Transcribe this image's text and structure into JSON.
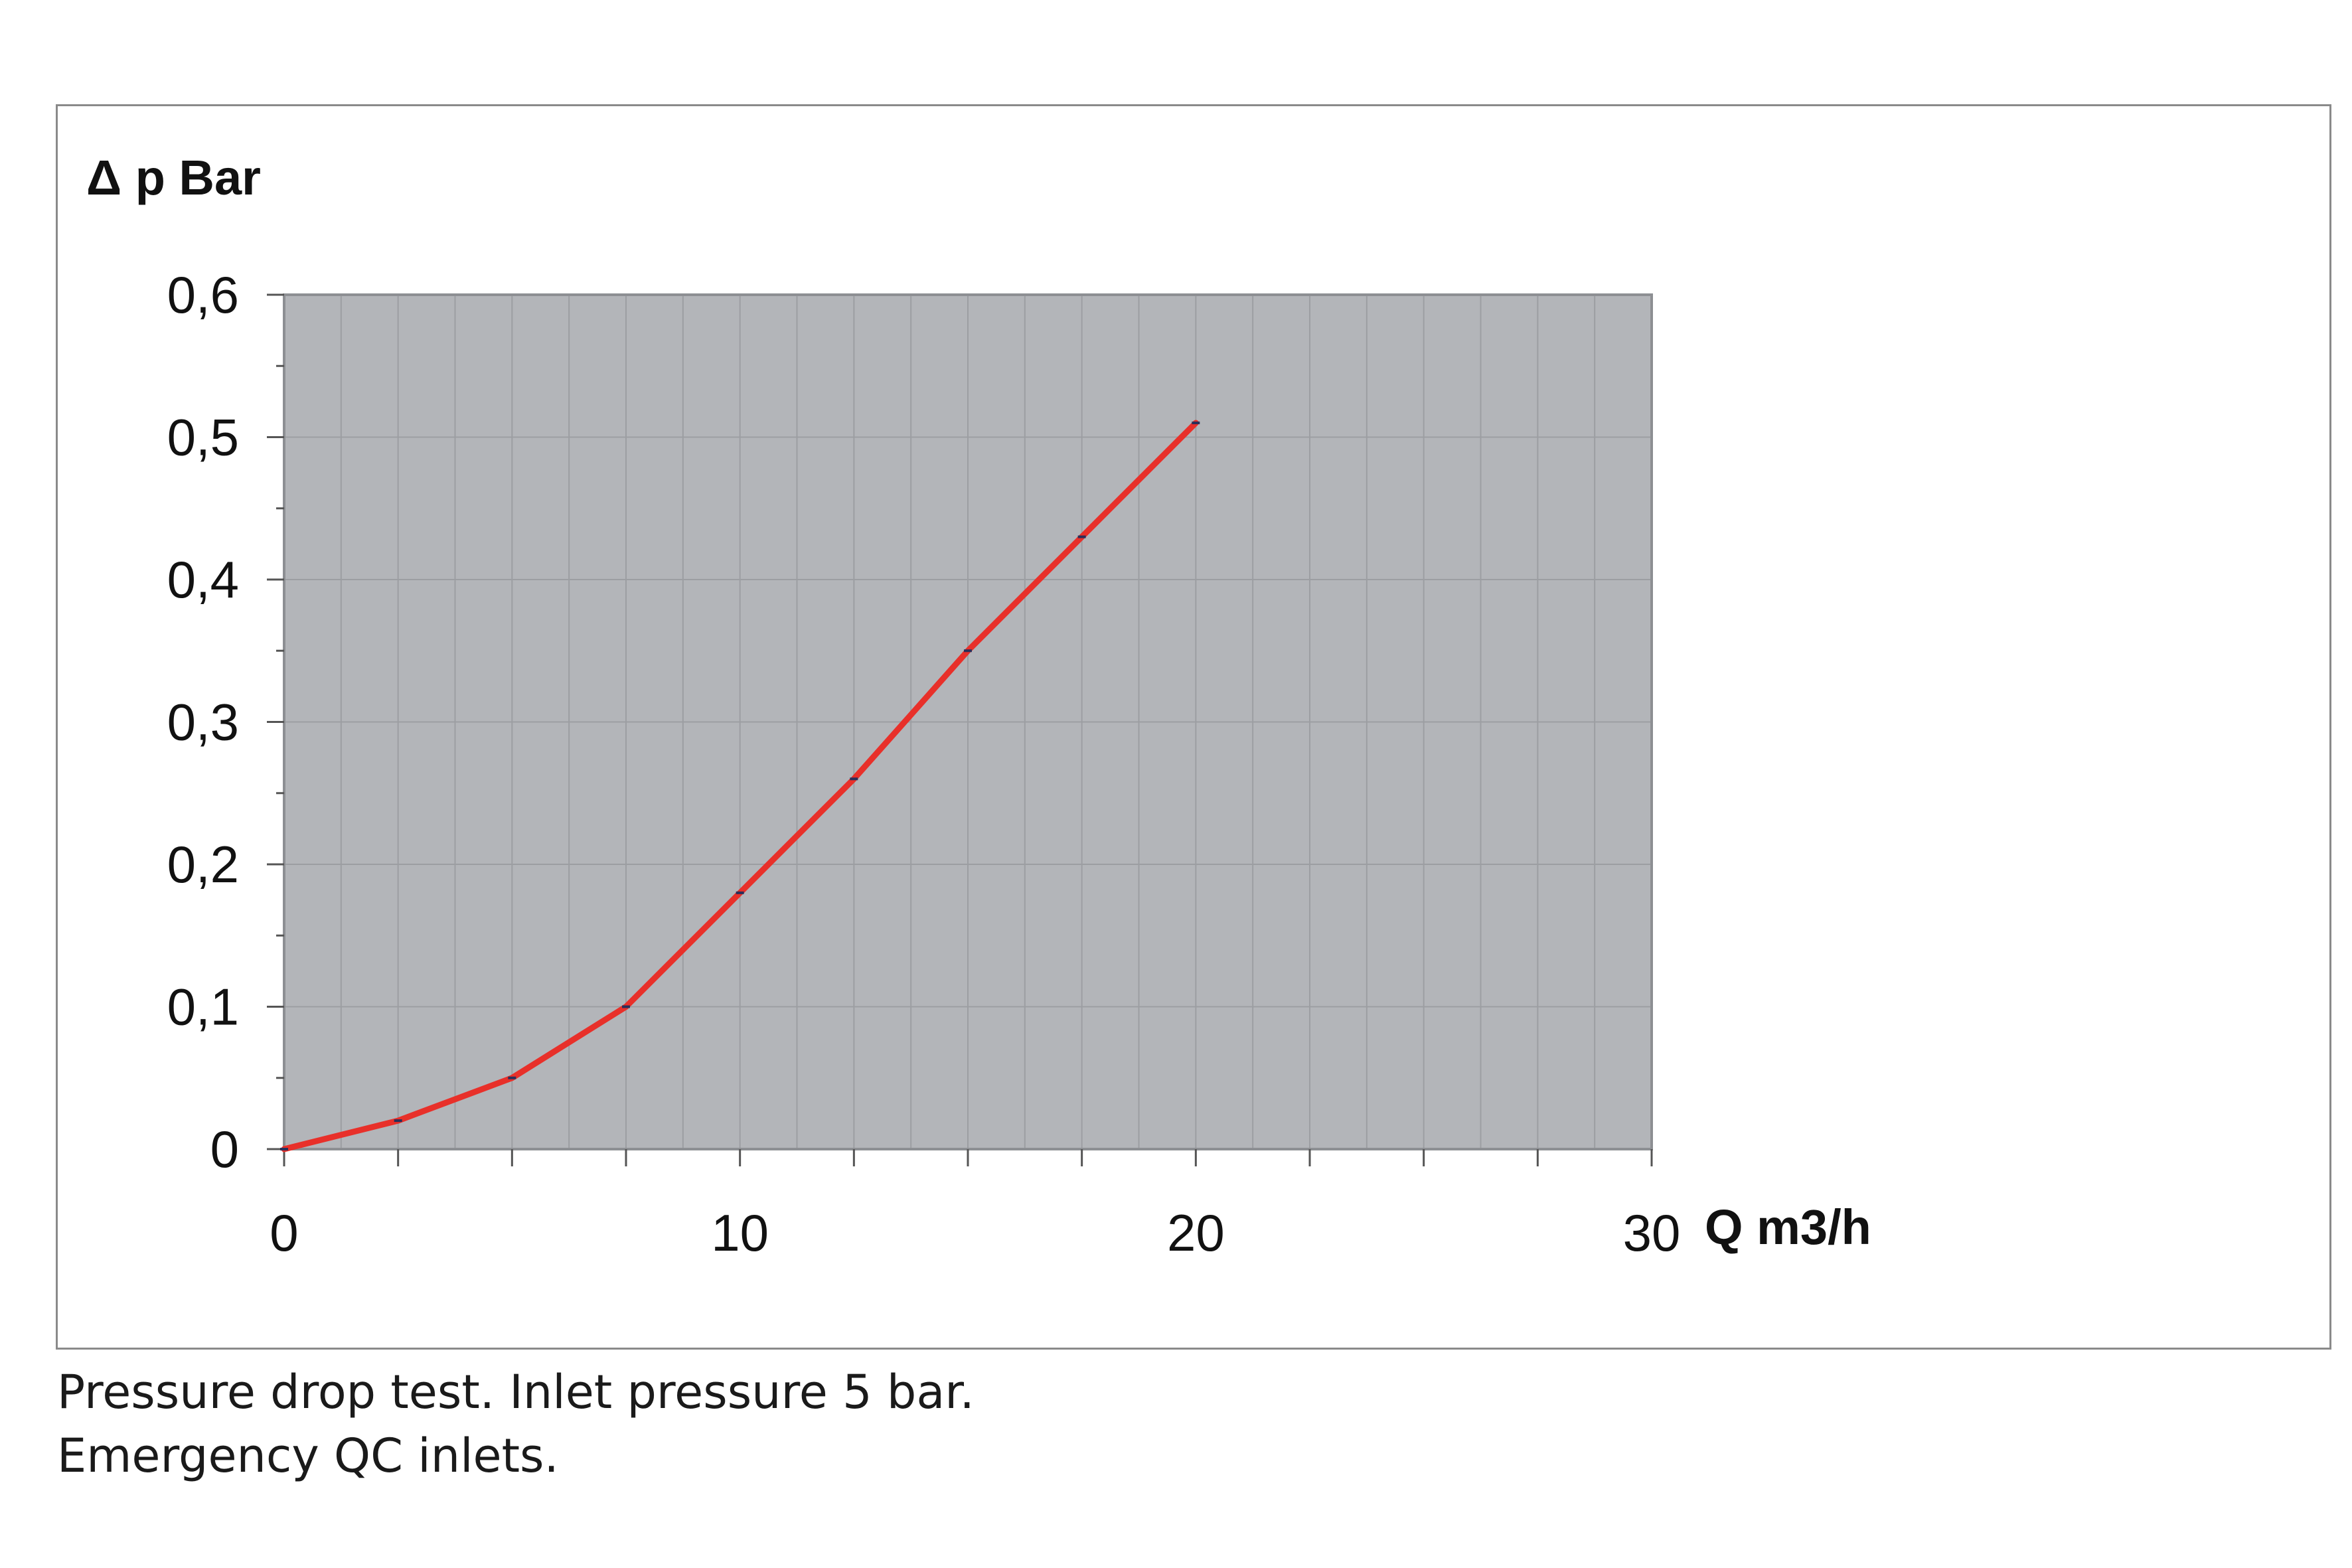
{
  "chart_data": {
    "type": "line",
    "ylabel": "Δ p Bar",
    "xlabel": "Q m3/h",
    "xlim": [
      0,
      30
    ],
    "ylim": [
      0,
      0.6
    ],
    "x_ticks": [
      "0",
      "10",
      "20",
      "30"
    ],
    "x_tick_values": [
      0,
      10,
      20,
      30
    ],
    "y_ticks": [
      "0",
      "0,1",
      "0,2",
      "0,3",
      "0,4",
      "0,5",
      "0,6"
    ],
    "y_tick_values": [
      0,
      0.1,
      0.2,
      0.3,
      0.4,
      0.5,
      0.6
    ],
    "grid": true,
    "legend": "none",
    "series": [
      {
        "color": "#e8302a",
        "x": [
          0,
          2.5,
          5,
          7.5,
          10,
          12.5,
          15,
          17.5,
          20
        ],
        "y": [
          0,
          0.02,
          0.05,
          0.1,
          0.18,
          0.26,
          0.35,
          0.43,
          0.51
        ]
      }
    ],
    "colors": {
      "plot_background": "#b3b5b9",
      "grid": "#9c9ea2",
      "line": "#e8302a"
    }
  },
  "caption": {
    "line1": "Pressure drop test. Inlet pressure 5 bar.",
    "line2": "Emergency QC inlets."
  }
}
